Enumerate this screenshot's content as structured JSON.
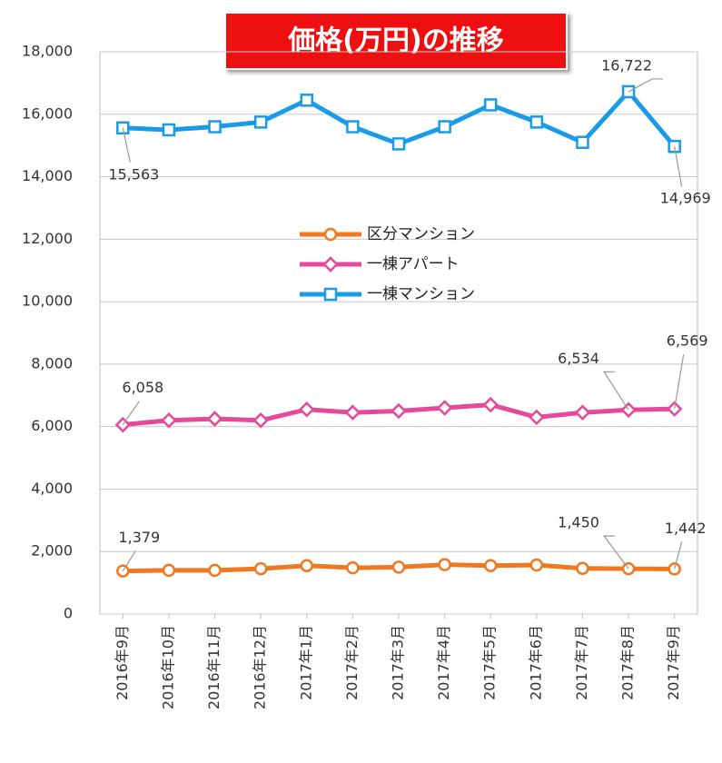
{
  "chart_data": {
    "type": "line",
    "title": "価格(万円)の推移",
    "categories": [
      "2016年9月",
      "2016年10月",
      "2016年11月",
      "2016年12月",
      "2017年1月",
      "2017年2月",
      "2017年3月",
      "2017年4月",
      "2017年5月",
      "2017年6月",
      "2017年7月",
      "2017年8月",
      "2017年9月"
    ],
    "series": [
      {
        "name": "区分マンション",
        "color": "#f07820",
        "marker": "circle",
        "values": [
          1379,
          1400,
          1400,
          1450,
          1550,
          1480,
          1500,
          1580,
          1550,
          1570,
          1460,
          1450,
          1442
        ],
        "value_labels": [
          "1,379",
          null,
          null,
          null,
          null,
          null,
          null,
          null,
          null,
          null,
          null,
          "1,450",
          "1,442"
        ]
      },
      {
        "name": "一棟アパート",
        "color": "#e6489c",
        "marker": "diamond",
        "values": [
          6058,
          6200,
          6250,
          6200,
          6550,
          6450,
          6500,
          6600,
          6700,
          6300,
          6450,
          6534,
          6569
        ],
        "value_labels": [
          "6,058",
          null,
          null,
          null,
          null,
          null,
          null,
          null,
          null,
          null,
          null,
          "6,534",
          "6,569"
        ]
      },
      {
        "name": "一棟マンション",
        "color": "#1a9be8",
        "marker": "square",
        "values": [
          15563,
          15500,
          15600,
          15750,
          16450,
          15600,
          15050,
          15600,
          16300,
          15750,
          15100,
          16722,
          14969
        ],
        "value_labels": [
          "15,563",
          null,
          null,
          null,
          null,
          null,
          null,
          null,
          null,
          null,
          null,
          "16,722",
          "14,969"
        ]
      }
    ],
    "ylim": [
      0,
      18000
    ],
    "yticks": [
      0,
      {
        "value": 2000,
        "label": "2,000"
      },
      {
        "value": 4000,
        "label": "4,000"
      },
      {
        "value": 6000,
        "label": "6,000"
      },
      {
        "value": 8000,
        "label": "8,000"
      },
      {
        "value": 10000,
        "label": "10,000"
      },
      {
        "value": 12000,
        "label": "12,000"
      },
      {
        "value": 14000,
        "label": "14,000"
      },
      {
        "value": 16000,
        "label": "16,000"
      },
      {
        "value": 18000,
        "label": "18,000"
      }
    ],
    "grid": true
  }
}
